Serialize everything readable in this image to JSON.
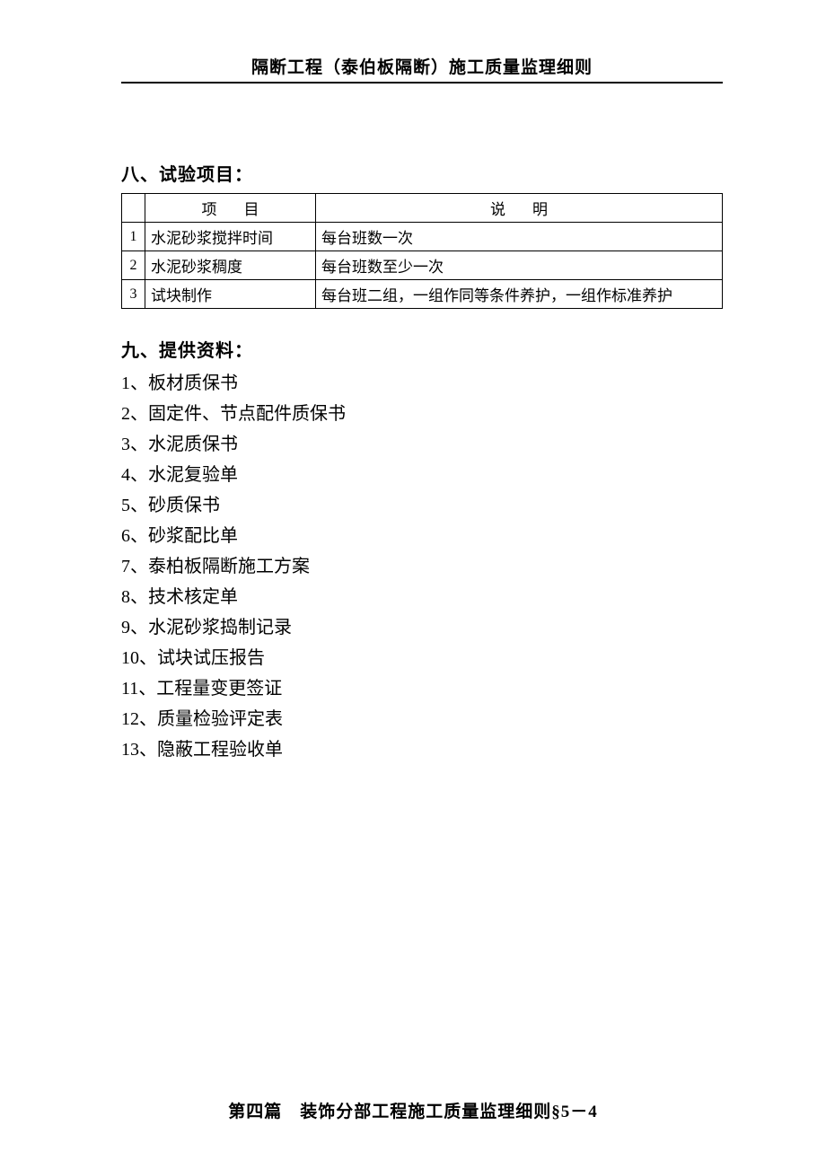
{
  "header": {
    "title": "隔断工程（泰伯板隔断）施工质量监理细则"
  },
  "section8": {
    "heading": "八、试验项目：",
    "table": {
      "headers": {
        "num": "",
        "item": "项目",
        "desc": "说明"
      },
      "rows": [
        {
          "num": "1",
          "item": "水泥砂浆搅拌时间",
          "desc": "每台班数一次"
        },
        {
          "num": "2",
          "item": "水泥砂浆稠度",
          "desc": "每台班数至少一次"
        },
        {
          "num": "3",
          "item": "试块制作",
          "desc": "每台班二组，一组作同等条件养护，一组作标准养护"
        }
      ]
    }
  },
  "section9": {
    "heading": "九、提供资料：",
    "items": [
      "1、板材质保书",
      "2、固定件、节点配件质保书",
      "3、水泥质保书",
      "4、水泥复验单",
      "5、砂质保书",
      "6、砂浆配比单",
      "7、泰柏板隔断施工方案",
      "8、技术核定单",
      "9、水泥砂浆捣制记录",
      "10、试块试压报告",
      "11、工程量变更签证",
      "12、质量检验评定表",
      "13、隐蔽工程验收单"
    ]
  },
  "footer": {
    "text": "第四篇　装饰分部工程施工质量监理细则§5－4"
  }
}
